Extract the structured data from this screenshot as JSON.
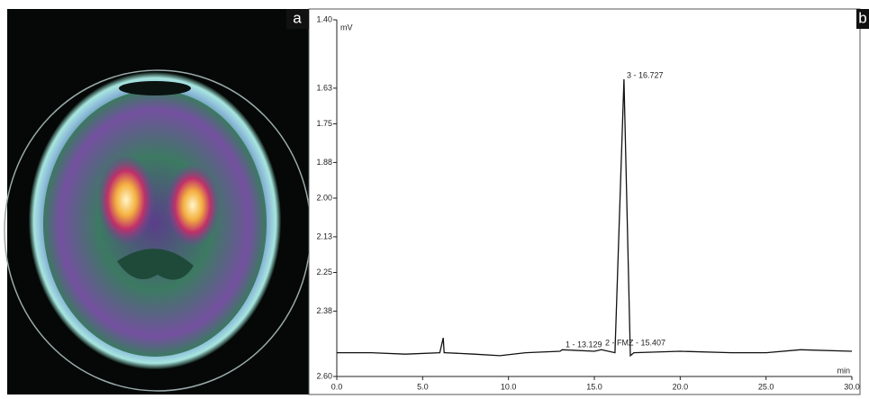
{
  "panel_labels": [
    "a",
    "b"
  ],
  "chart_data": {
    "type": "line",
    "y_label": "mV",
    "x_label": "min",
    "annotations": [
      "3 - 16.727",
      "1 - 13.129",
      "2 - FMZ - 15.407"
    ],
    "x": [
      0,
      2,
      4,
      6,
      6.2,
      6.25,
      6.3,
      8,
      9.5,
      11,
      13,
      13.13,
      15,
      15.41,
      16.2,
      16.727,
      17.1,
      17.3,
      20,
      23,
      25,
      27,
      30
    ],
    "values": [
      2.52,
      2.52,
      2.525,
      2.52,
      2.47,
      2.52,
      2.52,
      2.525,
      2.53,
      2.52,
      2.515,
      2.51,
      2.515,
      2.51,
      2.52,
      1.6,
      2.53,
      2.52,
      2.515,
      2.52,
      2.52,
      2.51,
      2.515
    ],
    "color": "#111111",
    "xlim": [
      0,
      30
    ],
    "xticks": [
      {
        "value": 0,
        "label": "0.0"
      },
      {
        "value": 5,
        "label": "5.0"
      },
      {
        "value": 10,
        "label": "10.0"
      },
      {
        "value": 15,
        "label": "15.0"
      },
      {
        "value": 20,
        "label": "20.0"
      },
      {
        "value": 25,
        "label": "25.0"
      },
      {
        "value": 30,
        "label": "30.0"
      }
    ],
    "ylim": [
      2.6,
      1.4
    ],
    "yticks": [
      {
        "value": 1.4,
        "label": "1.40"
      },
      {
        "value": 1.63,
        "label": "1.63"
      },
      {
        "value": 1.75,
        "label": "1.75"
      },
      {
        "value": 1.88,
        "label": "1.88"
      },
      {
        "value": 2,
        "label": "2.00"
      },
      {
        "value": 2.13,
        "label": "2.13"
      },
      {
        "value": 2.25,
        "label": "2.25"
      },
      {
        "value": 2.38,
        "label": "2.38"
      },
      {
        "value": 2.6,
        "label": "2.60"
      }
    ]
  }
}
